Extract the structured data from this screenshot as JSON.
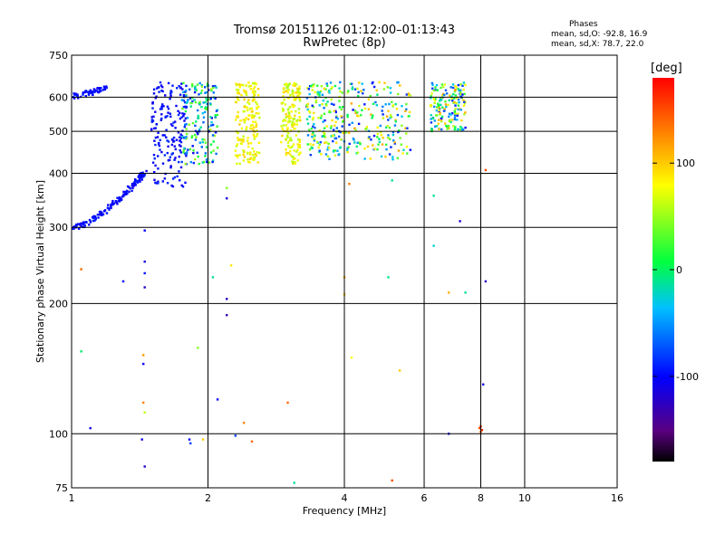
{
  "header": {
    "title": "Tromsø 20151126 01:12:00–01:13:43",
    "subtitle": "RwPretec (8p)"
  },
  "stats": {
    "heading": "Phases",
    "o_line": "mean, sd,O: -92.8, 16.9",
    "x_line": "mean, sd,X:  78.7, 22.0"
  },
  "colorbar": {
    "unit": "[deg]",
    "ticks": [
      "100",
      "0",
      "-100"
    ],
    "tick_values": [
      100,
      0,
      -100
    ],
    "range": [
      -180,
      180
    ],
    "colormap": "rainbow (black-purple-blue-cyan-green-yellow-orange-red)"
  },
  "chart_data": {
    "type": "scatter",
    "title": "Tromsø 20151126 01:12:00–01:13:43",
    "subtitle": "RwPretec (8p)",
    "xlabel": "Frequency [MHz]",
    "ylabel": "Stationary phase Virtual Height [km]",
    "x_scale": "log",
    "y_scale": "log",
    "xlim": [
      1,
      16
    ],
    "ylim": [
      75,
      750
    ],
    "x_ticks": [
      1,
      2,
      4,
      6,
      8,
      10,
      16
    ],
    "x_tick_labels": [
      "1",
      "2",
      "4",
      "6",
      "8",
      "10",
      "16"
    ],
    "y_ticks": [
      75,
      100,
      200,
      300,
      400,
      500,
      600,
      750
    ],
    "y_tick_labels": [
      "75",
      "100",
      "200",
      "300",
      "400",
      "500",
      "600",
      "750"
    ],
    "grid": true,
    "clusters": [
      {
        "desc": "O-mode trace rising",
        "x_range": [
          1.0,
          1.45
        ],
        "y_range": [
          295,
          400
        ],
        "path": [
          [
            1.0,
            297
          ],
          [
            1.1,
            310
          ],
          [
            1.2,
            330
          ],
          [
            1.3,
            355
          ],
          [
            1.4,
            385
          ],
          [
            1.45,
            400
          ]
        ],
        "phase_range": [
          -110,
          -90
        ]
      },
      {
        "desc": "O-mode top-left",
        "x_range": [
          1.0,
          1.2
        ],
        "y_range": [
          600,
          640
        ],
        "path": [
          [
            1.0,
            600
          ],
          [
            1.1,
            615
          ],
          [
            1.2,
            635
          ]
        ],
        "phase_range": [
          -105,
          -90
        ]
      },
      {
        "desc": "F-region O-mode cloud",
        "x_range": [
          1.5,
          1.8
        ],
        "y_range": [
          370,
          650
        ],
        "phase_range": [
          -110,
          -85
        ]
      },
      {
        "desc": "F-region mixed",
        "x_range": [
          1.75,
          2.1
        ],
        "y_range": [
          420,
          650
        ],
        "phase_range": [
          -110,
          60
        ]
      },
      {
        "desc": "X-mode band",
        "x_range": [
          2.3,
          2.6
        ],
        "y_range": [
          420,
          650
        ],
        "phase_range": [
          60,
          100
        ]
      },
      {
        "desc": "X-mode band",
        "x_range": [
          2.9,
          3.2
        ],
        "y_range": [
          420,
          650
        ],
        "phase_range": [
          50,
          100
        ]
      },
      {
        "desc": "mixed band",
        "x_range": [
          3.3,
          4.0
        ],
        "y_range": [
          430,
          650
        ],
        "phase_range": [
          -100,
          100
        ]
      },
      {
        "desc": "mixed band",
        "x_range": [
          4.0,
          5.6
        ],
        "y_range": [
          430,
          650
        ],
        "phase_range": [
          -100,
          120
        ]
      },
      {
        "desc": "top band",
        "x_range": [
          6.2,
          7.4
        ],
        "y_range": [
          500,
          650
        ],
        "phase_range": [
          -100,
          120
        ]
      }
    ],
    "sparse_points": [
      {
        "x": 1.05,
        "y": 240,
        "phase": 140
      },
      {
        "x": 1.05,
        "y": 155,
        "phase": -10
      },
      {
        "x": 1.1,
        "y": 103,
        "phase": -110
      },
      {
        "x": 1.3,
        "y": 225,
        "phase": -100
      },
      {
        "x": 1.45,
        "y": 295,
        "phase": -100
      },
      {
        "x": 1.45,
        "y": 250,
        "phase": -110
      },
      {
        "x": 1.45,
        "y": 235,
        "phase": -95
      },
      {
        "x": 1.45,
        "y": 218,
        "phase": -120
      },
      {
        "x": 1.44,
        "y": 152,
        "phase": 120
      },
      {
        "x": 1.44,
        "y": 145,
        "phase": -100
      },
      {
        "x": 1.44,
        "y": 118,
        "phase": 130
      },
      {
        "x": 1.45,
        "y": 112,
        "phase": 60
      },
      {
        "x": 1.43,
        "y": 97,
        "phase": -110
      },
      {
        "x": 1.45,
        "y": 84,
        "phase": -120
      },
      {
        "x": 1.82,
        "y": 97,
        "phase": -100
      },
      {
        "x": 1.83,
        "y": 95,
        "phase": -80
      },
      {
        "x": 1.9,
        "y": 158,
        "phase": 40
      },
      {
        "x": 1.95,
        "y": 97,
        "phase": 100
      },
      {
        "x": 2.05,
        "y": 230,
        "phase": -20
      },
      {
        "x": 2.1,
        "y": 120,
        "phase": -100
      },
      {
        "x": 2.2,
        "y": 350,
        "phase": -110
      },
      {
        "x": 2.2,
        "y": 370,
        "phase": 40
      },
      {
        "x": 2.2,
        "y": 205,
        "phase": -120
      },
      {
        "x": 2.2,
        "y": 188,
        "phase": -130
      },
      {
        "x": 2.25,
        "y": 245,
        "phase": 90
      },
      {
        "x": 2.3,
        "y": 99,
        "phase": -80
      },
      {
        "x": 2.4,
        "y": 106,
        "phase": 130
      },
      {
        "x": 2.5,
        "y": 96,
        "phase": 140
      },
      {
        "x": 3.0,
        "y": 118,
        "phase": 140
      },
      {
        "x": 3.1,
        "y": 77,
        "phase": -20
      },
      {
        "x": 4.0,
        "y": 230,
        "phase": 110
      },
      {
        "x": 4.0,
        "y": 210,
        "phase": 100
      },
      {
        "x": 4.1,
        "y": 378,
        "phase": 130
      },
      {
        "x": 4.15,
        "y": 150,
        "phase": 80
      },
      {
        "x": 5.0,
        "y": 230,
        "phase": -15
      },
      {
        "x": 5.1,
        "y": 385,
        "phase": -20
      },
      {
        "x": 5.1,
        "y": 78,
        "phase": 150
      },
      {
        "x": 5.3,
        "y": 140,
        "phase": 100
      },
      {
        "x": 6.3,
        "y": 355,
        "phase": -20
      },
      {
        "x": 6.3,
        "y": 272,
        "phase": -30
      },
      {
        "x": 6.8,
        "y": 212,
        "phase": 110
      },
      {
        "x": 6.8,
        "y": 100,
        "phase": -110
      },
      {
        "x": 7.2,
        "y": 310,
        "phase": -120
      },
      {
        "x": 7.4,
        "y": 212,
        "phase": -20
      },
      {
        "x": 7.4,
        "y": 510,
        "phase": -100
      },
      {
        "x": 8.0,
        "y": 104,
        "phase": 160
      },
      {
        "x": 7.95,
        "y": 103,
        "phase": 150
      },
      {
        "x": 8.05,
        "y": 102,
        "phase": 165
      },
      {
        "x": 8.0,
        "y": 101,
        "phase": 140
      },
      {
        "x": 8.1,
        "y": 130,
        "phase": -110
      },
      {
        "x": 8.2,
        "y": 225,
        "phase": -120
      },
      {
        "x": 8.2,
        "y": 407,
        "phase": 150
      }
    ]
  }
}
